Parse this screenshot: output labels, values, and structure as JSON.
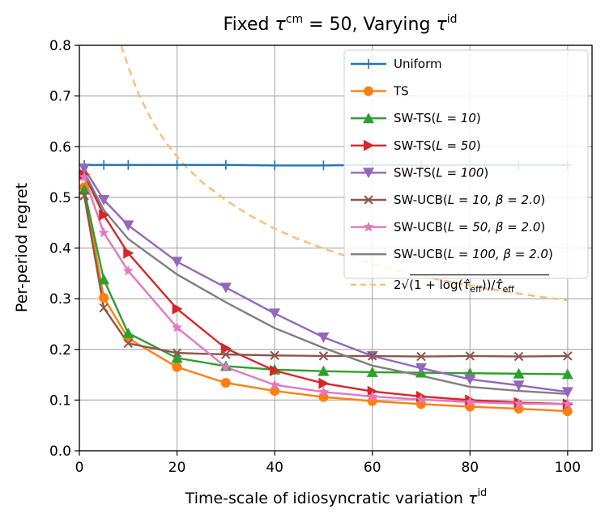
{
  "chart_data": {
    "type": "line",
    "title": {
      "prefix": "Fixed ",
      "tau": "τ",
      "sup": "cm",
      "mid": " = 50, Varying ",
      "tau2": "τ",
      "sup2": "id"
    },
    "xlabel": {
      "text": "Time-scale of idiosyncratic variation ",
      "tau": "τ",
      "sup": "id"
    },
    "ylabel": "Per-period regret",
    "xlim": [
      0,
      105
    ],
    "ylim": [
      0,
      0.8
    ],
    "xticks": [
      0,
      20,
      40,
      60,
      80,
      100
    ],
    "yticks": [
      0.0,
      0.1,
      0.2,
      0.3,
      0.4,
      0.5,
      0.6,
      0.7,
      0.8
    ],
    "xtick_labels": [
      "0",
      "20",
      "40",
      "60",
      "80",
      "100"
    ],
    "ytick_labels": [
      "0.0",
      "0.1",
      "0.2",
      "0.3",
      "0.4",
      "0.5",
      "0.6",
      "0.7",
      "0.8"
    ],
    "grid": true,
    "legend_position": "top-right",
    "x": [
      1,
      5,
      10,
      20,
      30,
      40,
      50,
      60,
      70,
      80,
      90,
      100
    ],
    "series": [
      {
        "name": "Uniform",
        "color": "#1f77b4",
        "marker": "plus",
        "values": [
          0.564,
          0.564,
          0.564,
          0.564,
          0.564,
          0.563,
          0.563,
          0.564,
          0.563,
          0.564,
          0.564,
          0.564
        ]
      },
      {
        "name": "TS",
        "color": "#ff7f0e",
        "marker": "circle",
        "values": [
          0.52,
          0.302,
          0.222,
          0.165,
          0.134,
          0.118,
          0.106,
          0.098,
          0.092,
          0.087,
          0.083,
          0.078
        ]
      },
      {
        "name": "SW-TS(L = 10)",
        "label_parts": {
          "pre": "SW-TS(",
          "math": "L = 10",
          "post": ")"
        },
        "color": "#2ca02c",
        "marker": "triangle-up",
        "values": [
          0.515,
          0.338,
          0.232,
          0.183,
          0.167,
          0.16,
          0.157,
          0.155,
          0.154,
          0.153,
          0.152,
          0.151
        ]
      },
      {
        "name": "SW-TS(L = 50)",
        "label_parts": {
          "pre": "SW-TS(",
          "math": "L = 50",
          "post": ")"
        },
        "color": "#d62728",
        "marker": "triangle-right",
        "values": [
          0.545,
          0.465,
          0.39,
          0.28,
          0.202,
          0.158,
          0.133,
          0.117,
          0.107,
          0.1,
          0.095,
          0.092
        ]
      },
      {
        "name": "SW-TS(L = 100)",
        "label_parts": {
          "pre": "SW-TS(",
          "math": "L = 100",
          "post": ")"
        },
        "color": "#9467bd",
        "marker": "triangle-down",
        "values": [
          0.557,
          0.495,
          0.445,
          0.373,
          0.322,
          0.271,
          0.224,
          0.187,
          0.163,
          0.141,
          0.129,
          0.116
        ]
      },
      {
        "name": "SW-UCB(L = 10, β = 2.0)",
        "label_parts": {
          "pre": "SW-UCB(",
          "math": "L = 10, β = 2.0",
          "post": ")"
        },
        "color": "#8c564b",
        "marker": "x",
        "values": [
          0.503,
          0.282,
          0.212,
          0.193,
          0.19,
          0.188,
          0.187,
          0.187,
          0.186,
          0.187,
          0.186,
          0.187
        ]
      },
      {
        "name": "SW-UCB(L = 50, β = 2.0)",
        "label_parts": {
          "pre": "SW-UCB(",
          "math": "L = 50, β = 2.0",
          "post": ")"
        },
        "color": "#e377c2",
        "marker": "star",
        "values": [
          0.54,
          0.43,
          0.355,
          0.243,
          0.165,
          0.13,
          0.116,
          0.107,
          0.101,
          0.096,
          0.093,
          0.092
        ]
      },
      {
        "name": "SW-UCB(L = 100, β = 2.0)",
        "label_parts": {
          "pre": "SW-UCB(",
          "math": "L = 100, β = 2.0",
          "post": ")"
        },
        "color": "#7f7f7f",
        "marker": "none",
        "values": [
          0.55,
          0.475,
          0.418,
          0.348,
          0.293,
          0.242,
          0.203,
          0.168,
          0.148,
          0.126,
          0.118,
          0.112
        ]
      }
    ],
    "bound_curve": {
      "name": "2√((1 + log(τ̂_eff))/τ̂_eff)",
      "label_parts": {
        "coef": "2",
        "open": "(1 + log(",
        "tau": "τ̂",
        "sub": "eff",
        "mid": "))/",
        "tau2": "τ̂",
        "sub2": "eff"
      },
      "color": "#ffbb78",
      "style": "dashed",
      "x": [
        8.56,
        10,
        12,
        14,
        16,
        18,
        20,
        22,
        25,
        30,
        35,
        40,
        45,
        50,
        55,
        60,
        65,
        70,
        75,
        80,
        85,
        90,
        95,
        100
      ],
      "values": [
        0.8,
        0.758,
        0.707,
        0.667,
        0.633,
        0.605,
        0.58,
        0.559,
        0.531,
        0.494,
        0.464,
        0.438,
        0.417,
        0.399,
        0.383,
        0.369,
        0.356,
        0.345,
        0.335,
        0.326,
        0.318,
        0.31,
        0.303,
        0.297
      ]
    }
  }
}
